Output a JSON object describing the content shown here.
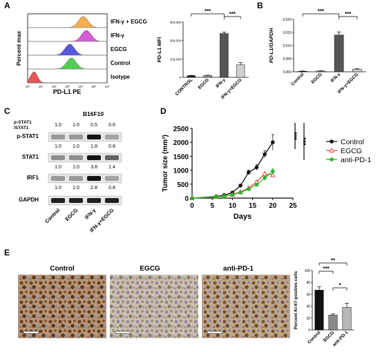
{
  "panels": {
    "A": {
      "letter": "A",
      "flow": {
        "ylabel": "Percent max",
        "xlabel": "PD-L1 PE",
        "ticks": [
          "10⁰",
          "10¹",
          "10²",
          "10³",
          "10⁴",
          "10⁵",
          "10⁶"
        ],
        "tracks": [
          {
            "label": "IFN-γ + EGCG",
            "color": "#f0a030",
            "peak": 0.7
          },
          {
            "label": "IFN-γ",
            "color": "#cc3fcc",
            "peak": 0.74
          },
          {
            "label": "EGCG",
            "color": "#3a3ad6",
            "peak": 0.53
          },
          {
            "label": "Control",
            "color": "#33c433",
            "peak": 0.55
          },
          {
            "label": "Isotype",
            "color": "#e23a3a",
            "peak": 0.08
          }
        ]
      },
      "bar": {
        "type": "bar",
        "ylabel": "PD-L1 MFI",
        "ylim": [
          0,
          300000
        ],
        "yticks": [
          "0",
          "100,000",
          "200,000",
          "300,000"
        ],
        "categories": [
          "CONTROL",
          "EGCG",
          "IFN-γ",
          "IFN-γ+EGCG"
        ],
        "values": [
          9000,
          10000,
          238000,
          68000
        ],
        "errors": [
          1500,
          1500,
          7000,
          12000
        ],
        "colors": [
          "#222222",
          "#9a9a9a",
          "#555555",
          "#d0d0d0"
        ],
        "sig": [
          "***",
          "***"
        ]
      }
    },
    "B": {
      "letter": "B",
      "bar": {
        "type": "bar",
        "ylabel": "PD-L1/GAPDH",
        "ylim": [
          0,
          0.02
        ],
        "yticks": [
          "0.000",
          "0.005",
          "0.010",
          "0.015",
          "0.020"
        ],
        "categories": [
          "Control",
          "EGCG",
          "IFN-γ",
          "IFN-γ+EGCG"
        ],
        "values": [
          0.0002,
          0.0003,
          0.014,
          0.001
        ],
        "errors": [
          0.0001,
          0.0001,
          0.0012,
          0.0002
        ],
        "colors": [
          "#222222",
          "#9a9a9a",
          "#555555",
          "#d0d0d0"
        ],
        "sig": [
          "***",
          "***"
        ]
      }
    },
    "C": {
      "letter": "C",
      "title": "B16F10",
      "ratio_label": [
        "p-STAT1",
        "/STAT1"
      ],
      "ratios": [
        "1.0",
        "1.0",
        "0.5",
        "0.6"
      ],
      "rows": [
        {
          "label": "p-STAT1",
          "values": [
            "1.0",
            "1.0",
            "1.8",
            "0.8"
          ],
          "intensity": [
            0.35,
            0.35,
            0.95,
            0.3
          ]
        },
        {
          "label": "STAT1",
          "values": [
            "1.0",
            "1.0",
            "3.8",
            "1.4"
          ],
          "intensity": [
            0.4,
            0.4,
            0.95,
            0.6
          ]
        },
        {
          "label": "IRF1",
          "values": [
            "1.0",
            "1.0",
            "2.8",
            "0.8"
          ],
          "intensity": [
            0.35,
            0.35,
            0.95,
            0.3
          ]
        },
        {
          "label": "GAPDH",
          "values": [],
          "intensity": [
            0.9,
            0.9,
            0.9,
            0.9
          ]
        }
      ],
      "lanes": [
        "Control",
        "EGCG",
        "IFN-γ",
        "IFN-γ+EGCG"
      ]
    },
    "D": {
      "letter": "D",
      "chart": {
        "type": "line",
        "xlabel": "Days",
        "ylabel": "Tumor size (mm³)",
        "xlim": [
          0,
          25
        ],
        "ylim": [
          0,
          2500
        ],
        "xticks": [
          "0",
          "5",
          "10",
          "15",
          "20",
          "25"
        ],
        "yticks": [
          "0",
          "500",
          "1000",
          "1500",
          "2000",
          "2500"
        ],
        "x": [
          0,
          6,
          8,
          10,
          12,
          14,
          16,
          18,
          20
        ],
        "series": [
          {
            "name": "Control",
            "color": "#111111",
            "marker": "circle",
            "values": [
              0,
              60,
              110,
              200,
              450,
              920,
              1100,
              1570,
              2000
            ],
            "errors": [
              0,
              10,
              15,
              25,
              40,
              80,
              100,
              130,
              280
            ]
          },
          {
            "name": "EGCG",
            "color": "#e84a4a",
            "marker": "triangle",
            "values": [
              0,
              45,
              75,
              130,
              220,
              360,
              580,
              870,
              830
            ],
            "errors": [
              0,
              8,
              10,
              15,
              25,
              35,
              50,
              70,
              80
            ]
          },
          {
            "name": "anti-PD-1",
            "color": "#2ab52a",
            "marker": "circle",
            "values": [
              0,
              40,
              70,
              120,
              200,
              320,
              480,
              720,
              960
            ],
            "errors": [
              0,
              8,
              10,
              15,
              20,
              30,
              45,
              70,
              90
            ]
          }
        ],
        "sig": [
          "***",
          "***"
        ]
      }
    },
    "E": {
      "letter": "E",
      "images": [
        "Control",
        "EGCG",
        "anti-PD-1"
      ],
      "bar": {
        "type": "bar",
        "ylabel": "Percent Ki-67-positive cells",
        "ylim": [
          0,
          100
        ],
        "yticks": [
          "0",
          "20",
          "40",
          "60",
          "80",
          "100"
        ],
        "categories": [
          "Control",
          "EGCG",
          "anti-PD-1"
        ],
        "values": [
          67,
          25,
          38
        ],
        "errors": [
          6,
          2,
          7
        ],
        "colors": [
          "#111111",
          "#8a8a8a",
          "#b8b8b8"
        ],
        "sig": [
          "***",
          "**",
          "*"
        ]
      }
    }
  }
}
